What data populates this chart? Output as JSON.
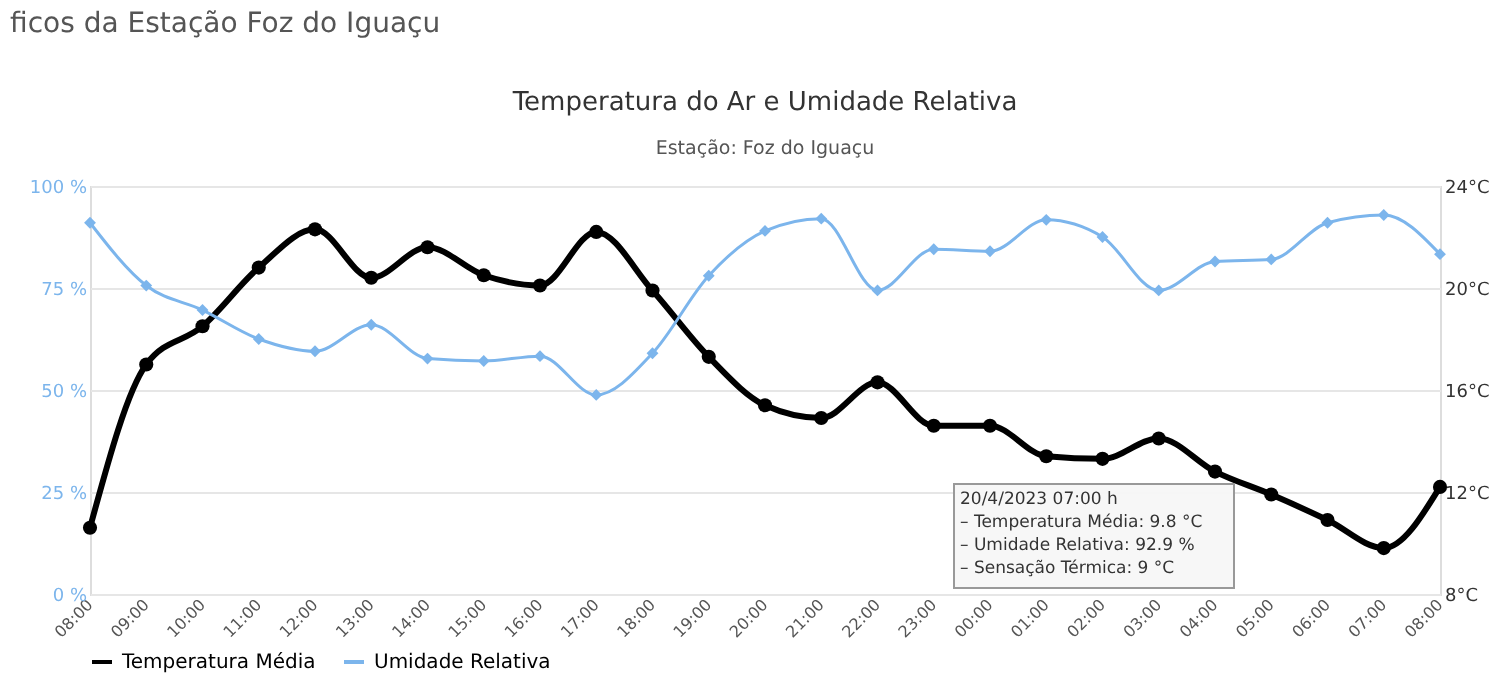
{
  "chart_data": {
    "type": "line",
    "title": "Temperatura do Ar e Umidade Relativa",
    "subtitle": "Estação: Foz do Iguaçu",
    "annotations": [
      "ficos da Estação Foz do Iguaçu",
      "20/4/2023 07:00 h\n– Temperatura Média: 9.8 °C\n– Umidade Relativa: 92.9 %\n– Sensação Térmica: 9 °C"
    ],
    "categories": [
      "08:00",
      "09:00",
      "10:00",
      "11:00",
      "12:00",
      "13:00",
      "14:00",
      "15:00",
      "16:00",
      "17:00",
      "18:00",
      "19:00",
      "20:00",
      "21:00",
      "22:00",
      "23:00",
      "00:00",
      "01:00",
      "02:00",
      "03:00",
      "04:00",
      "05:00",
      "06:00",
      "07:00",
      "08:00"
    ],
    "series": [
      {
        "name": "Temperatura Média",
        "color": "#000000",
        "axis": "y2",
        "marker": "circle",
        "values": [
          10.6,
          17.0,
          18.5,
          20.8,
          22.3,
          20.4,
          21.6,
          20.5,
          20.1,
          22.2,
          19.9,
          17.3,
          15.4,
          14.9,
          16.3,
          14.6,
          14.6,
          13.4,
          13.3,
          14.1,
          12.8,
          11.9,
          10.9,
          9.8,
          12.2
        ]
      },
      {
        "name": "Umidade Relativa",
        "color": "#7cb5ec",
        "marker": "diamond",
        "values": [
          91,
          75.6,
          69.6,
          62.5,
          59.5,
          66,
          57.7,
          57.1,
          58.3,
          48.8,
          59,
          78,
          89,
          92,
          74.4,
          84.5,
          84,
          91.7,
          87.5,
          74.4,
          81.5,
          82,
          91,
          92.9,
          83.3
        ]
      }
    ],
    "ylim": [
      0,
      100
    ],
    "yticks": [
      {
        "value": 0,
        "label": "0 %"
      },
      {
        "value": 25,
        "label": "25 %"
      },
      {
        "value": 50,
        "label": "50 %"
      },
      {
        "value": 75,
        "label": "75 %"
      },
      {
        "value": 100,
        "label": "100 %"
      }
    ],
    "y2lim": [
      8,
      24
    ],
    "y2ticks": [
      {
        "value": 8,
        "label": "8°C"
      },
      {
        "value": 12,
        "label": "12°C"
      },
      {
        "value": 16,
        "label": "16°C"
      },
      {
        "value": 20,
        "label": "20°C"
      },
      {
        "value": 24,
        "label": "24°C"
      }
    ],
    "grid": "y",
    "legend": "bottom",
    "line_style": "solid"
  }
}
